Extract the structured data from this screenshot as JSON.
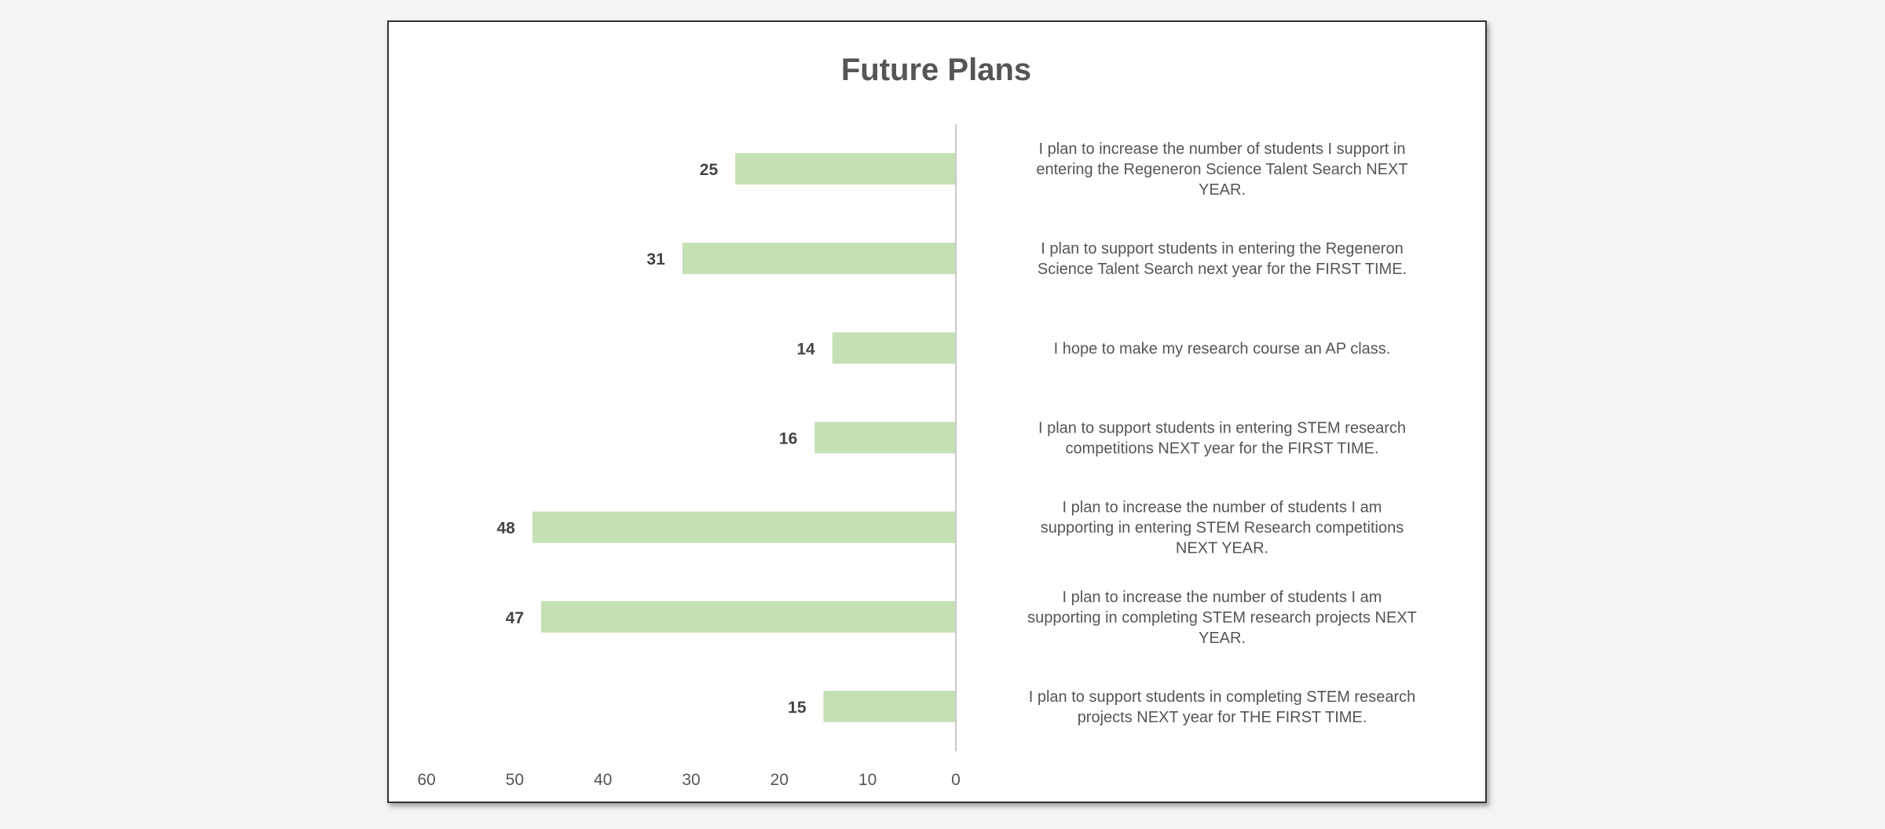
{
  "chart_data": {
    "type": "bar",
    "orientation": "horizontal",
    "direction": "bars extend left from zero",
    "title": "Future Plans",
    "categories": [
      [
        "I plan to increase the number of students I support in",
        "entering the Regeneron Science Talent Search NEXT",
        "YEAR."
      ],
      [
        "I plan to support students in entering the Regeneron",
        "Science Talent Search next year for the FIRST TIME."
      ],
      [
        "I hope to make my research course an AP class."
      ],
      [
        "I plan to support students in entering STEM research",
        "competitions NEXT year for the FIRST TIME."
      ],
      [
        "I plan to increase the number of students I am",
        "supporting in entering STEM Research competitions",
        "NEXT YEAR."
      ],
      [
        "I plan to increase the number of students I am",
        "supporting in completing STEM research projects NEXT",
        "YEAR."
      ],
      [
        "I plan to support students in completing STEM research",
        "projects NEXT year for THE FIRST TIME."
      ]
    ],
    "values": [
      25,
      31,
      14,
      16,
      48,
      47,
      15
    ],
    "data_labels": [
      "25",
      "31",
      "14",
      "16",
      "48",
      "47",
      "15"
    ],
    "xlim": [
      0,
      60
    ],
    "ticks": [
      "0",
      "10",
      "20",
      "30",
      "40",
      "50",
      "60"
    ],
    "xlabel": "",
    "ylabel": "",
    "grid": false,
    "legend": "none",
    "bar_color": "#c5e0b4"
  }
}
